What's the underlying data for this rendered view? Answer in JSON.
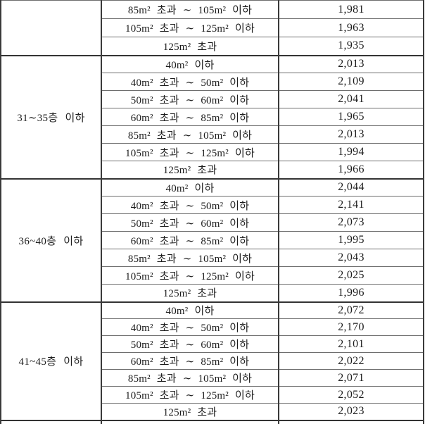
{
  "table": {
    "name": "floor-area-price-table",
    "columns": [
      "floor_range",
      "area_range",
      "value"
    ],
    "sections": [
      {
        "floor_label": "",
        "rows": [
          {
            "area": "85m² 초과 ∼ 105m² 이하",
            "value": "1,981"
          },
          {
            "area": "105m² 초과 ∼ 125m² 이하",
            "value": "1,963"
          },
          {
            "area": "125m² 초과",
            "value": "1,935"
          }
        ]
      },
      {
        "floor_label": "31∼35층 이하",
        "rows": [
          {
            "area": "40m² 이하",
            "value": "2,013"
          },
          {
            "area": "40m² 초과 ∼ 50m² 이하",
            "value": "2,109"
          },
          {
            "area": "50m² 초과 ∼ 60m² 이하",
            "value": "2,041"
          },
          {
            "area": "60m² 초과 ∼ 85m² 이하",
            "value": "1,965"
          },
          {
            "area": "85m² 초과 ∼ 105m² 이하",
            "value": "2,013"
          },
          {
            "area": "105m² 초과 ∼ 125m² 이하",
            "value": "1,994"
          },
          {
            "area": "125m² 초과",
            "value": "1,966"
          }
        ]
      },
      {
        "floor_label": "36~40층 이하",
        "rows": [
          {
            "area": "40m² 이하",
            "value": "2,044"
          },
          {
            "area": "40m² 초과 ∼ 50m² 이하",
            "value": "2,141"
          },
          {
            "area": "50m² 초과 ∼ 60m² 이하",
            "value": "2,073"
          },
          {
            "area": "60m² 초과 ∼ 85m² 이하",
            "value": "1,995"
          },
          {
            "area": "85m² 초과 ∼ 105m² 이하",
            "value": "2,043"
          },
          {
            "area": "105m² 초과 ∼ 125m² 이하",
            "value": "2,025"
          },
          {
            "area": "125m² 초과",
            "value": "1,996"
          }
        ]
      },
      {
        "floor_label": "41~45층 이하",
        "rows": [
          {
            "area": "40m² 이하",
            "value": "2,072"
          },
          {
            "area": "40m² 초과 ∼ 50m² 이하",
            "value": "2,170"
          },
          {
            "area": "50m² 초과 ∼ 60m² 이하",
            "value": "2,101"
          },
          {
            "area": "60m² 초과 ∼ 85m² 이하",
            "value": "2,022"
          },
          {
            "area": "85m² 초과 ∼ 105m² 이하",
            "value": "2,071"
          },
          {
            "area": "105m² 초과 ∼ 125m² 이하",
            "value": "2,052"
          },
          {
            "area": "125m² 초과",
            "value": "2,023"
          }
        ]
      },
      {
        "floor_label": "",
        "partial": true,
        "rows": [
          {
            "area": "",
            "value": ""
          }
        ]
      }
    ]
  }
}
